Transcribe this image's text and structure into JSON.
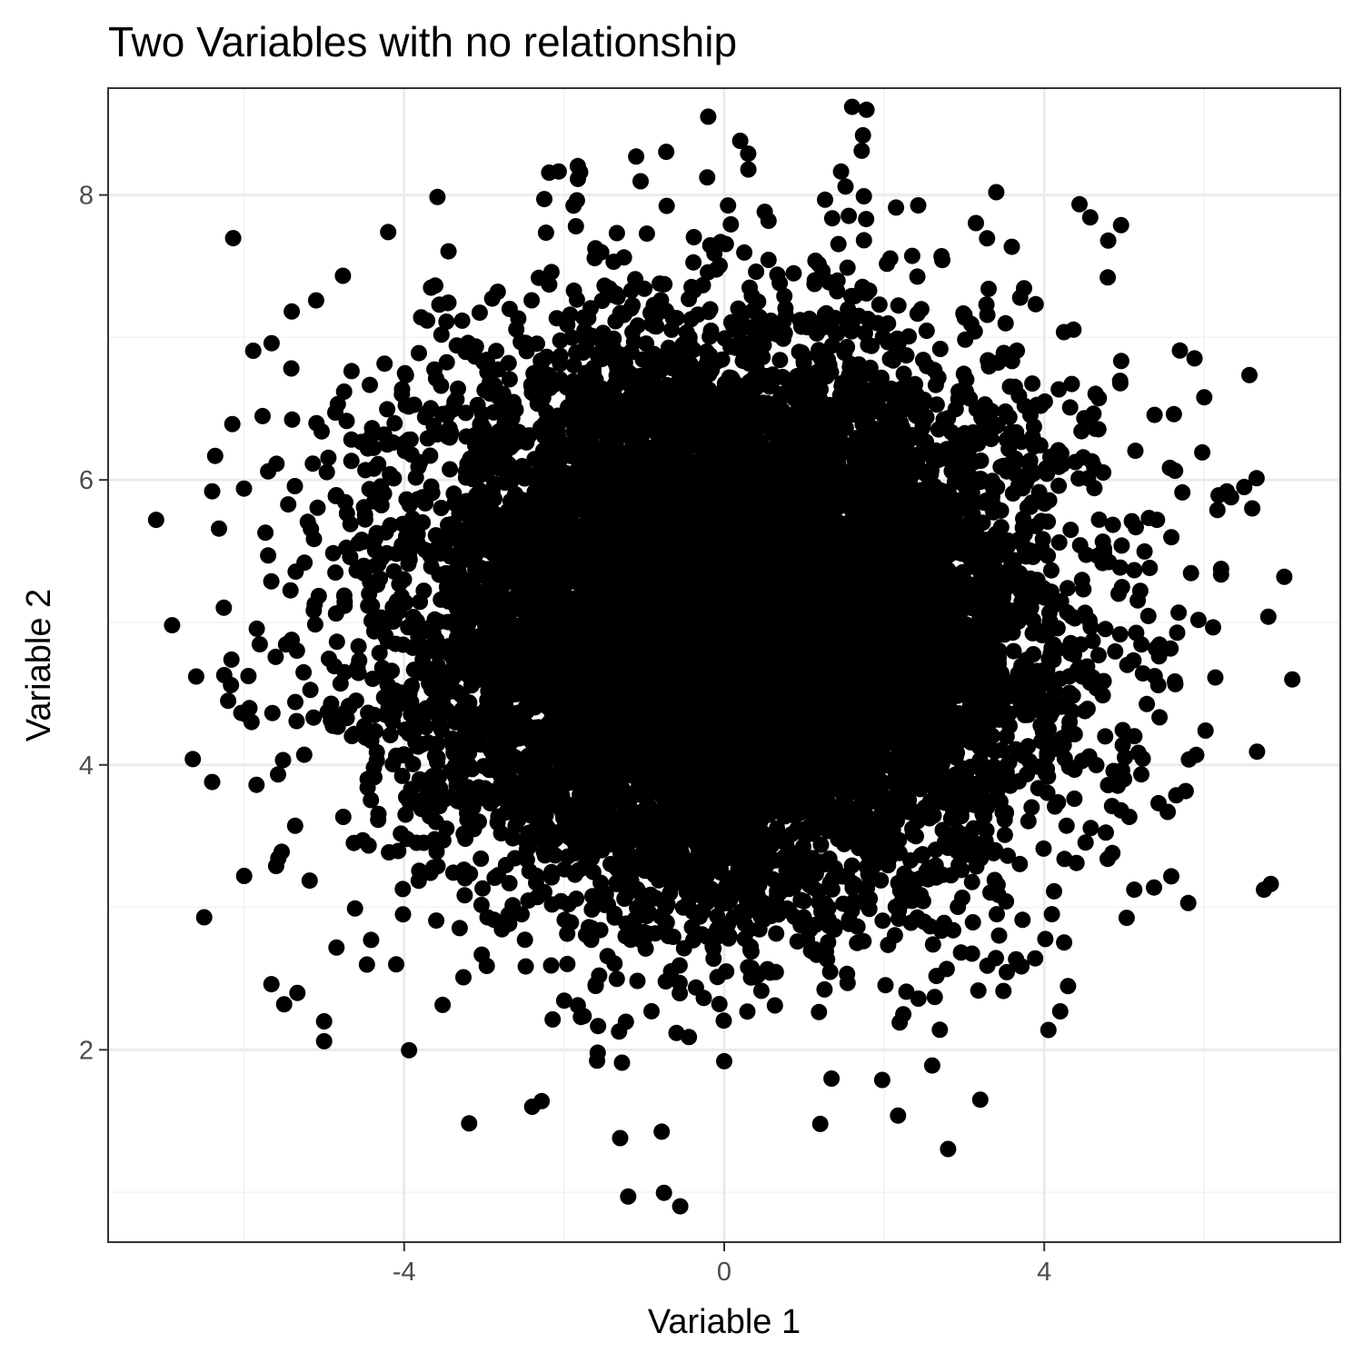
{
  "chart_data": {
    "type": "scatter",
    "title": "Two Variables with no relationship",
    "xlabel": "Variable 1",
    "ylabel": "Variable 2",
    "xlim": [
      -7.7,
      7.7
    ],
    "ylim": [
      0.65,
      8.75
    ],
    "x_ticks": [
      -4,
      0,
      4
    ],
    "y_ticks": [
      2,
      4,
      6,
      8
    ],
    "x_minor": [
      -6,
      -2,
      2,
      6
    ],
    "y_minor": [
      1,
      3,
      5,
      7
    ],
    "grid": true,
    "legend": "none",
    "distribution": {
      "x_mean": 0.0,
      "x_sd": 2.0,
      "y_mean": 5.0,
      "y_sd": 1.0,
      "n": 10000,
      "correlation": 0
    },
    "outlier_points": [
      {
        "x": -7.1,
        "y": 5.72
      },
      {
        "x": -6.9,
        "y": 4.98
      },
      {
        "x": -6.6,
        "y": 4.62
      },
      {
        "x": -6.4,
        "y": 5.92
      },
      {
        "x": -6.2,
        "y": 4.45
      },
      {
        "x": -6.4,
        "y": 3.88
      },
      {
        "x": -6.0,
        "y": 3.22
      },
      {
        "x": -6.5,
        "y": 2.93
      },
      {
        "x": -5.7,
        "y": 6.06
      },
      {
        "x": -5.6,
        "y": 3.29
      },
      {
        "x": -5.7,
        "y": 5.47
      },
      {
        "x": -5.5,
        "y": 2.32
      },
      {
        "x": -5.1,
        "y": 7.26
      },
      {
        "x": -5.0,
        "y": 2.2
      },
      {
        "x": -5.0,
        "y": 2.06
      },
      {
        "x": -4.2,
        "y": 7.74
      },
      {
        "x": -4.1,
        "y": 2.6
      },
      {
        "x": -1.8,
        "y": 8.16
      },
      {
        "x": -1.1,
        "y": 8.27
      },
      {
        "x": -0.2,
        "y": 8.55
      },
      {
        "x": 0.3,
        "y": 8.29
      },
      {
        "x": 0.2,
        "y": 8.38
      },
      {
        "x": 3.4,
        "y": 8.02
      },
      {
        "x": 4.8,
        "y": 7.68
      },
      {
        "x": 6.0,
        "y": 6.58
      },
      {
        "x": 6.5,
        "y": 5.95
      },
      {
        "x": 6.6,
        "y": 5.8
      },
      {
        "x": 7.0,
        "y": 5.32
      },
      {
        "x": 6.8,
        "y": 5.04
      },
      {
        "x": 7.1,
        "y": 4.6
      },
      {
        "x": 5.9,
        "y": 4.07
      },
      {
        "x": 5.8,
        "y": 3.03
      },
      {
        "x": 3.2,
        "y": 1.65
      },
      {
        "x": -1.3,
        "y": 1.38
      },
      {
        "x": -1.2,
        "y": 0.97
      },
      {
        "x": -2.4,
        "y": 1.6
      },
      {
        "x": 1.2,
        "y": 1.48
      },
      {
        "x": 0.0,
        "y": 1.92
      },
      {
        "x": 4.2,
        "y": 2.27
      },
      {
        "x": 2.6,
        "y": 1.89
      }
    ],
    "colors": {
      "point": "#000000",
      "panel_border": "#333333",
      "grid_major": "#ebebeb",
      "grid_minor": "#f2f2f2",
      "tick_text": "#4d4d4d"
    }
  }
}
